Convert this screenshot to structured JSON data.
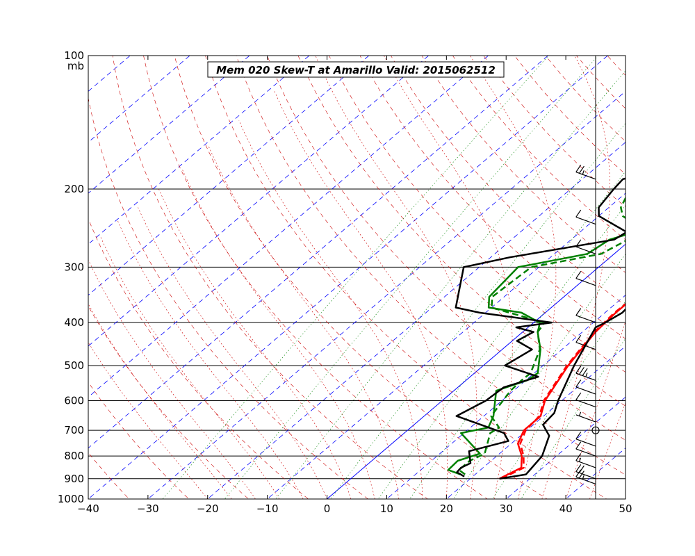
{
  "chart_data": {
    "type": "line",
    "subtype": "skew-t log-p sounding",
    "title": "Mem 020  Skew-T at Amarillo   Valid: 2015062512",
    "xlabel": "",
    "ylabel": "",
    "pressure_unit_label": "mb",
    "xlim": [
      -40,
      50
    ],
    "ylim": [
      1000,
      100
    ],
    "y_scale": "log",
    "x_ticks": [
      -40,
      -30,
      -20,
      -10,
      0,
      10,
      20,
      30,
      40,
      50
    ],
    "x_tick_labels": [
      "−40",
      "−30",
      "−20",
      "−10",
      "0",
      "10",
      "20",
      "30",
      "40",
      "50"
    ],
    "y_ticks": [
      100,
      200,
      300,
      400,
      500,
      600,
      700,
      800,
      900,
      1000
    ],
    "y_tick_labels": [
      "100",
      "200",
      "300",
      "400",
      "500",
      "600",
      "700",
      "800",
      "900",
      "1000"
    ],
    "legend": "none",
    "colors": {
      "temperature": "#ff0000",
      "dewpoint": "#008000",
      "ensemble_member": "#000000",
      "isotherm": "#0000ff",
      "dry_adiabat": "#cc0000",
      "moist_adiabat": "#cc0000",
      "mixing_ratio": "#008000"
    },
    "series": [
      {
        "role": "temperature-solid",
        "color": "#ff0000",
        "style": "solid",
        "x": [
          24.9,
          26.4,
          24.2,
          21.1,
          19.5,
          19.5,
          17.2,
          14.2,
          12.2,
          11.8,
          11.9,
          10.1,
          8.7,
          7.2,
          6.5,
          6.0,
          6.2,
          7.0,
          7.7,
          8.0
        ],
        "y": [
          900,
          850,
          800,
          750,
          700,
          650,
          600,
          500,
          420,
          380,
          300,
          250,
          220,
          190,
          170,
          150,
          130,
          120,
          110,
          100
        ]
      },
      {
        "role": "temperature-dashed",
        "color": "#ff0000",
        "style": "dashed",
        "x": [
          25.2,
          26.8,
          24.5,
          21.5,
          19.8,
          19.3,
          17.0,
          14.0,
          12.0,
          11.6,
          12.3,
          9.9,
          8.8,
          7.7,
          7.0,
          6.8,
          6.9,
          7.4,
          7.8,
          8.0
        ],
        "y": [
          900,
          850,
          800,
          750,
          700,
          650,
          600,
          500,
          420,
          380,
          300,
          250,
          220,
          190,
          170,
          150,
          130,
          120,
          110,
          100
        ]
      },
      {
        "role": "temperature-member",
        "color": "#000000",
        "style": "solid",
        "x": [
          24.9,
          28.5,
          27.6,
          24.8,
          21.6,
          21.2,
          19.4,
          15.2,
          11.3,
          12.0,
          12.9,
          11.4,
          9.8,
          9.1,
          7.6,
          6.5,
          5.0,
          5.0,
          5.6,
          6.2,
          7.0,
          7.2
        ],
        "y": [
          900,
          880,
          800,
          720,
          680,
          640,
          600,
          500,
          410,
          400,
          380,
          300,
          250,
          220,
          200,
          180,
          160,
          145,
          130,
          120,
          105,
          100
        ]
      },
      {
        "role": "dewpoint-solid",
        "color": "#008000",
        "style": "solid",
        "x": [
          17.5,
          14.6,
          14.4,
          16.7,
          9.5,
          13.0,
          11.6,
          7.1,
          10.2,
          10.6,
          6.4,
          2.5,
          1.8,
          1.0,
          -4.0,
          -10.5,
          -12.5,
          -13.5,
          -4.5,
          -3.6,
          -0.8,
          -0.5,
          -3.0,
          -7.0,
          -9.0,
          -9.0,
          -9.5,
          -11.5,
          -13.0,
          -9.0,
          -7.5,
          -5.0,
          -3.0
        ],
        "y": [
          880,
          860,
          820,
          790,
          710,
          690,
          650,
          570,
          540,
          520,
          460,
          420,
          410,
          400,
          380,
          370,
          350,
          300,
          280,
          260,
          250,
          240,
          230,
          220,
          210,
          200,
          180,
          160,
          140,
          130,
          120,
          110,
          100
        ]
      },
      {
        "role": "dewpoint-dashed",
        "color": "#008000",
        "style": "dashed",
        "x": [
          18.3,
          16.4,
          16.4,
          17.5,
          14.4,
          14.8,
          11.2,
          9.5,
          9.3,
          9.4,
          6.3,
          2.5,
          2.2,
          1.7,
          -6.0,
          -10.0,
          -12.0,
          -11.3,
          -2.2,
          -0.5,
          -1.3,
          -2.4,
          -6.0,
          -8.0,
          -9.0,
          -9.5,
          -10.0,
          -12.0,
          -12.0,
          -10.5,
          -9.0,
          -7.0,
          -5.0
        ],
        "y": [
          880,
          860,
          820,
          790,
          710,
          690,
          650,
          570,
          540,
          520,
          460,
          420,
          410,
          400,
          380,
          370,
          350,
          300,
          280,
          260,
          250,
          240,
          230,
          220,
          210,
          200,
          180,
          160,
          140,
          130,
          120,
          110,
          100
        ]
      },
      {
        "role": "dewpoint-member",
        "color": "#000000",
        "style": "solid",
        "x": [
          18.6,
          16.5,
          16.3,
          17.0,
          14.4,
          19.0,
          16.7,
          5.4,
          7.3,
          7.7,
          11.4,
          3.6,
          5.0,
          0.8,
          1.8,
          -2.0,
          3.0,
          -11.0,
          -16.0,
          -22.6,
          -16.8,
          -2.8,
          -2.2,
          -10.0,
          -11.7,
          -12.8,
          -13.2,
          -8.6,
          -10.7,
          -10.0,
          -10.0,
          -11.9,
          -13.6,
          -15.4,
          -15.2,
          -14.5,
          -14.0,
          -12.6,
          -11.5,
          -12.5,
          -14.0
        ],
        "y": [
          890,
          870,
          850,
          830,
          780,
          740,
          710,
          650,
          600,
          560,
          530,
          500,
          460,
          440,
          420,
          410,
          400,
          380,
          370,
          300,
          285,
          260,
          250,
          230,
          220,
          200,
          190,
          180,
          175,
          165,
          155,
          145,
          135,
          125,
          118,
          115,
          110,
          106,
          103,
          101,
          100
        ]
      }
    ],
    "wind_barbs": [
      {
        "pressure": 925,
        "speed_kt": 25
      },
      {
        "pressure": 900,
        "speed_kt": 20
      },
      {
        "pressure": 850,
        "speed_kt": 15
      },
      {
        "pressure": 800,
        "speed_kt": 10
      },
      {
        "pressure": 760,
        "speed_kt": 10
      },
      {
        "pressure": 700,
        "speed_kt": 0
      },
      {
        "pressure": 670,
        "speed_kt": 5
      },
      {
        "pressure": 620,
        "speed_kt": 10
      },
      {
        "pressure": 580,
        "speed_kt": 10
      },
      {
        "pressure": 540,
        "speed_kt": 35
      },
      {
        "pressure": 460,
        "speed_kt": 10
      },
      {
        "pressure": 400,
        "speed_kt": 10
      },
      {
        "pressure": 330,
        "speed_kt": 10
      },
      {
        "pressure": 280,
        "speed_kt": 10
      },
      {
        "pressure": 240,
        "speed_kt": 10
      },
      {
        "pressure": 190,
        "speed_kt": 25
      }
    ]
  }
}
